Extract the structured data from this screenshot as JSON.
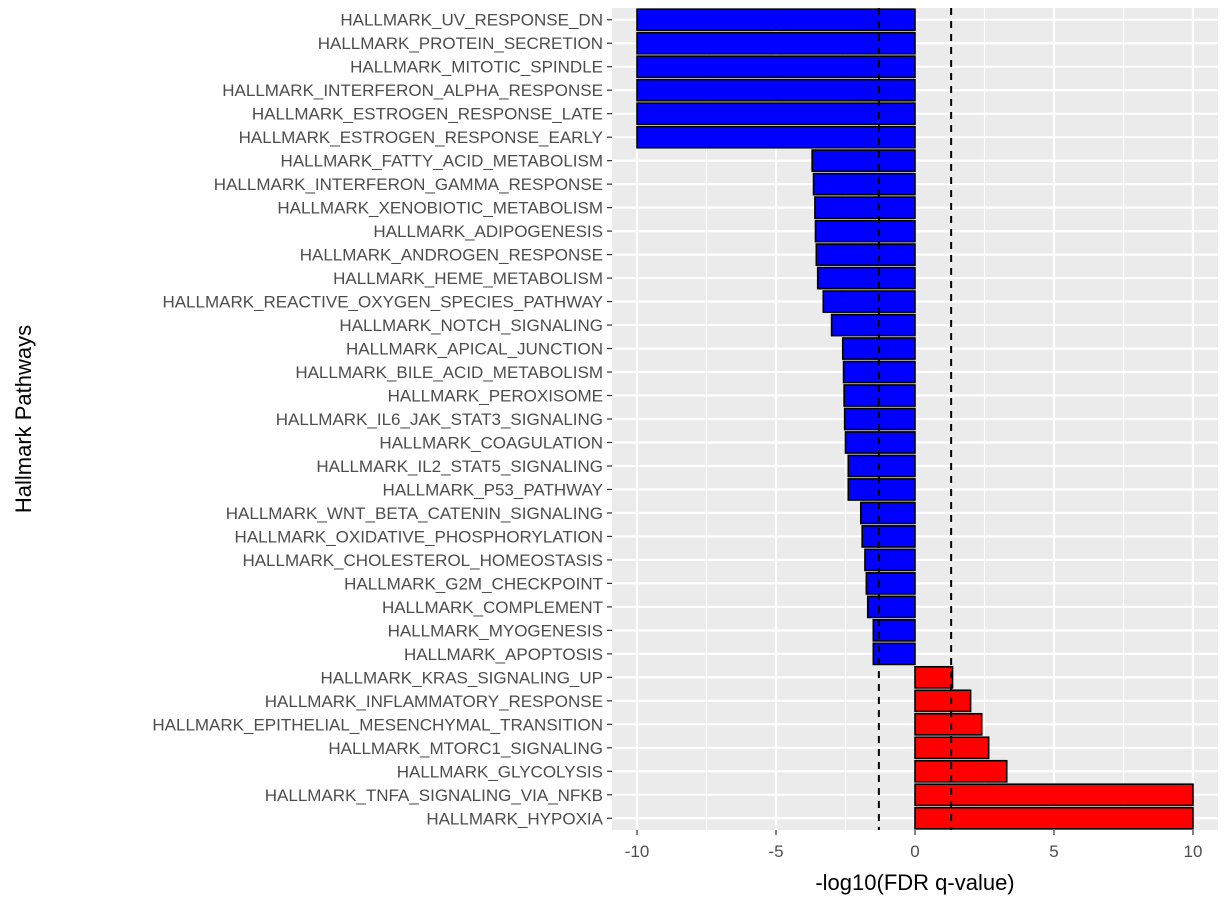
{
  "chart_data": {
    "type": "bar",
    "orientation": "horizontal",
    "xlabel": "-log10(FDR q-value)",
    "ylabel": "Hallmark Pathways",
    "xlim": [
      -10.9,
      10.9
    ],
    "xticks": [
      -10,
      -5,
      0,
      5,
      10
    ],
    "xtick_labels": [
      "-10",
      "-5",
      "0",
      "5",
      "10"
    ],
    "reference_lines": [
      -1.3,
      1.3
    ],
    "grid": true,
    "colors": {
      "negative": "#0000FF",
      "positive": "#FF0000",
      "panel": "#EBEBEB",
      "grid": "#FFFFFF",
      "outline": "#000000"
    },
    "categories": [
      "HALLMARK_UV_RESPONSE_DN",
      "HALLMARK_PROTEIN_SECRETION",
      "HALLMARK_MITOTIC_SPINDLE",
      "HALLMARK_INTERFERON_ALPHA_RESPONSE",
      "HALLMARK_ESTROGEN_RESPONSE_LATE",
      "HALLMARK_ESTROGEN_RESPONSE_EARLY",
      "HALLMARK_FATTY_ACID_METABOLISM",
      "HALLMARK_INTERFERON_GAMMA_RESPONSE",
      "HALLMARK_XENOBIOTIC_METABOLISM",
      "HALLMARK_ADIPOGENESIS",
      "HALLMARK_ANDROGEN_RESPONSE",
      "HALLMARK_HEME_METABOLISM",
      "HALLMARK_REACTIVE_OXYGEN_SPECIES_PATHWAY",
      "HALLMARK_NOTCH_SIGNALING",
      "HALLMARK_APICAL_JUNCTION",
      "HALLMARK_BILE_ACID_METABOLISM",
      "HALLMARK_PEROXISOME",
      "HALLMARK_IL6_JAK_STAT3_SIGNALING",
      "HALLMARK_COAGULATION",
      "HALLMARK_IL2_STAT5_SIGNALING",
      "HALLMARK_P53_PATHWAY",
      "HALLMARK_WNT_BETA_CATENIN_SIGNALING",
      "HALLMARK_OXIDATIVE_PHOSPHORYLATION",
      "HALLMARK_CHOLESTEROL_HOMEOSTASIS",
      "HALLMARK_G2M_CHECKPOINT",
      "HALLMARK_COMPLEMENT",
      "HALLMARK_MYOGENESIS",
      "HALLMARK_APOPTOSIS",
      "HALLMARK_KRAS_SIGNALING_UP",
      "HALLMARK_INFLAMMATORY_RESPONSE",
      "HALLMARK_EPITHELIAL_MESENCHYMAL_TRANSITION",
      "HALLMARK_MTORC1_SIGNALING",
      "HALLMARK_GLYCOLYSIS",
      "HALLMARK_TNFA_SIGNALING_VIA_NFKB",
      "HALLMARK_HYPOXIA"
    ],
    "values": [
      -10,
      -10,
      -10,
      -10,
      -10,
      -10,
      -3.7,
      -3.65,
      -3.6,
      -3.58,
      -3.55,
      -3.5,
      -3.3,
      -3.0,
      -2.6,
      -2.57,
      -2.55,
      -2.53,
      -2.5,
      -2.4,
      -2.4,
      -1.95,
      -1.9,
      -1.8,
      -1.75,
      -1.7,
      -1.5,
      -1.5,
      1.35,
      2.0,
      2.4,
      2.65,
      3.3,
      10,
      10
    ]
  }
}
